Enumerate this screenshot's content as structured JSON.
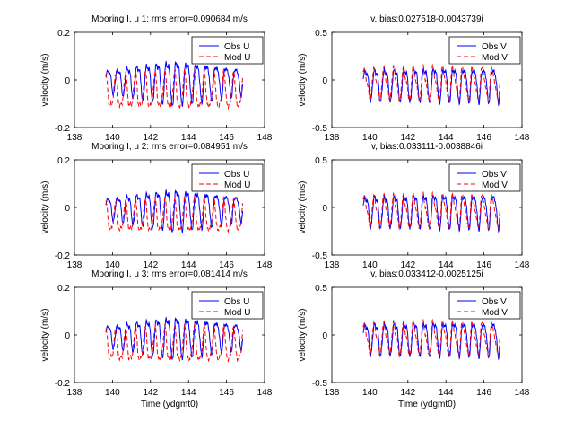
{
  "figure": {
    "background": "#ffffff"
  },
  "chart_data": [
    {
      "type": "line",
      "title": "Mooring I, u 1: rms error=0.090684 m/s",
      "xlabel": "",
      "ylabel": "velocity (m/s)",
      "xlim": [
        138,
        148
      ],
      "ylim": [
        -0.2,
        0.2
      ],
      "xticks": [
        "138",
        "140",
        "142",
        "144",
        "146",
        "148"
      ],
      "yticks": [
        "-0.2",
        "0",
        "0.2"
      ],
      "legend_position": "top-right",
      "series": [
        {
          "name": "Obs U",
          "color": "#0000ff",
          "dash": "solid",
          "x_start": 139.65,
          "x_end": 146.85,
          "period": 0.517,
          "amplitude": 0.085,
          "offset": 0.0,
          "envelope": [
            0.6,
            1.25,
            0.7
          ],
          "phase": 0.0
        },
        {
          "name": "Mod U",
          "color": "#ff0000",
          "dash": "dashed",
          "x_start": 139.65,
          "x_end": 146.85,
          "period": 0.517,
          "amplitude": 0.085,
          "offset": -0.055,
          "envelope": [
            0.9,
            1.0,
            0.95
          ],
          "phase": 0.25
        }
      ]
    },
    {
      "type": "line",
      "title": "v, bias:0.027518-0.0043739i",
      "xlabel": "",
      "ylabel": "velocity (m/s)",
      "xlim": [
        138,
        148
      ],
      "ylim": [
        -0.5,
        0.5
      ],
      "xticks": [
        "138",
        "140",
        "142",
        "144",
        "146",
        "148"
      ],
      "yticks": [
        "-0.5",
        "0",
        "0.5"
      ],
      "legend_position": "top-right",
      "series": [
        {
          "name": "Obs V",
          "color": "#0000ff",
          "dash": "solid",
          "x_start": 139.65,
          "x_end": 146.85,
          "period": 0.517,
          "amplitude": 0.2,
          "offset": -0.03,
          "envelope": [
            0.9,
            1.0,
            0.95
          ],
          "phase": 0.0
        },
        {
          "name": "Mod V",
          "color": "#ff0000",
          "dash": "dashed",
          "x_start": 139.65,
          "x_end": 146.85,
          "period": 0.517,
          "amplitude": 0.19,
          "offset": -0.04,
          "envelope": [
            0.9,
            1.0,
            0.95
          ],
          "phase": 0.1
        }
      ]
    },
    {
      "type": "line",
      "title": "Mooring I, u 2: rms error=0.084951 m/s",
      "xlabel": "",
      "ylabel": "velocity (m/s)",
      "xlim": [
        138,
        148
      ],
      "ylim": [
        -0.2,
        0.2
      ],
      "xticks": [
        "138",
        "140",
        "142",
        "144",
        "146",
        "148"
      ],
      "yticks": [
        "-0.2",
        "0",
        "0.2"
      ],
      "legend_position": "top-right",
      "series": [
        {
          "name": "Obs U",
          "color": "#0000ff",
          "dash": "solid",
          "x_start": 139.65,
          "x_end": 146.85,
          "period": 0.517,
          "amplitude": 0.08,
          "offset": 0.0,
          "envelope": [
            0.6,
            1.25,
            0.7
          ],
          "phase": 0.0
        },
        {
          "name": "Mod U",
          "color": "#ff0000",
          "dash": "dashed",
          "x_start": 139.65,
          "x_end": 146.85,
          "period": 0.517,
          "amplitude": 0.075,
          "offset": -0.045,
          "envelope": [
            0.9,
            1.0,
            0.95
          ],
          "phase": 0.25
        }
      ]
    },
    {
      "type": "line",
      "title": "v, bias:0.033111-0.0038846i",
      "xlabel": "",
      "ylabel": "velocity (m/s)",
      "xlim": [
        138,
        148
      ],
      "ylim": [
        -0.5,
        0.5
      ],
      "xticks": [
        "138",
        "140",
        "142",
        "144",
        "146",
        "148"
      ],
      "yticks": [
        "-0.5",
        "0",
        "0.5"
      ],
      "legend_position": "top-right",
      "series": [
        {
          "name": "Obs V",
          "color": "#0000ff",
          "dash": "solid",
          "x_start": 139.65,
          "x_end": 146.85,
          "period": 0.517,
          "amplitude": 0.2,
          "offset": -0.02,
          "envelope": [
            0.9,
            1.0,
            0.95
          ],
          "phase": 0.0
        },
        {
          "name": "Mod V",
          "color": "#ff0000",
          "dash": "dashed",
          "x_start": 139.65,
          "x_end": 146.85,
          "period": 0.517,
          "amplitude": 0.19,
          "offset": -0.04,
          "envelope": [
            0.9,
            1.0,
            0.95
          ],
          "phase": 0.1
        }
      ]
    },
    {
      "type": "line",
      "title": "Mooring I, u 3: rms error=0.081414 m/s",
      "xlabel": "Time (ydgmt0)",
      "ylabel": "velocity (m/s)",
      "xlim": [
        138,
        148
      ],
      "ylim": [
        -0.2,
        0.2
      ],
      "xticks": [
        "138",
        "140",
        "142",
        "144",
        "146",
        "148"
      ],
      "yticks": [
        "-0.2",
        "0",
        "0.2"
      ],
      "legend_position": "top-right",
      "series": [
        {
          "name": "Obs U",
          "color": "#0000ff",
          "dash": "solid",
          "x_start": 139.65,
          "x_end": 146.85,
          "period": 0.517,
          "amplitude": 0.08,
          "offset": 0.0,
          "envelope": [
            0.6,
            1.25,
            0.7
          ],
          "phase": 0.0
        },
        {
          "name": "Mod U",
          "color": "#ff0000",
          "dash": "dashed",
          "x_start": 139.65,
          "x_end": 146.85,
          "period": 0.517,
          "amplitude": 0.08,
          "offset": -0.05,
          "envelope": [
            0.9,
            1.0,
            0.95
          ],
          "phase": 0.25
        }
      ]
    },
    {
      "type": "line",
      "title": "v, bias:0.033412-0.0025125i",
      "xlabel": "Time (ydgmt0)",
      "ylabel": "velocity (m/s)",
      "xlim": [
        138,
        148
      ],
      "ylim": [
        -0.5,
        0.5
      ],
      "xticks": [
        "138",
        "140",
        "142",
        "144",
        "146",
        "148"
      ],
      "yticks": [
        "-0.5",
        "0",
        "0.5"
      ],
      "legend_position": "top-right",
      "series": [
        {
          "name": "Obs V",
          "color": "#0000ff",
          "dash": "solid",
          "x_start": 139.65,
          "x_end": 146.85,
          "period": 0.517,
          "amplitude": 0.2,
          "offset": -0.02,
          "envelope": [
            0.9,
            1.0,
            0.95
          ],
          "phase": 0.0
        },
        {
          "name": "Mod V",
          "color": "#ff0000",
          "dash": "dashed",
          "x_start": 139.65,
          "x_end": 146.85,
          "period": 0.517,
          "amplitude": 0.19,
          "offset": -0.04,
          "envelope": [
            0.9,
            1.0,
            0.95
          ],
          "phase": 0.1
        }
      ]
    }
  ]
}
